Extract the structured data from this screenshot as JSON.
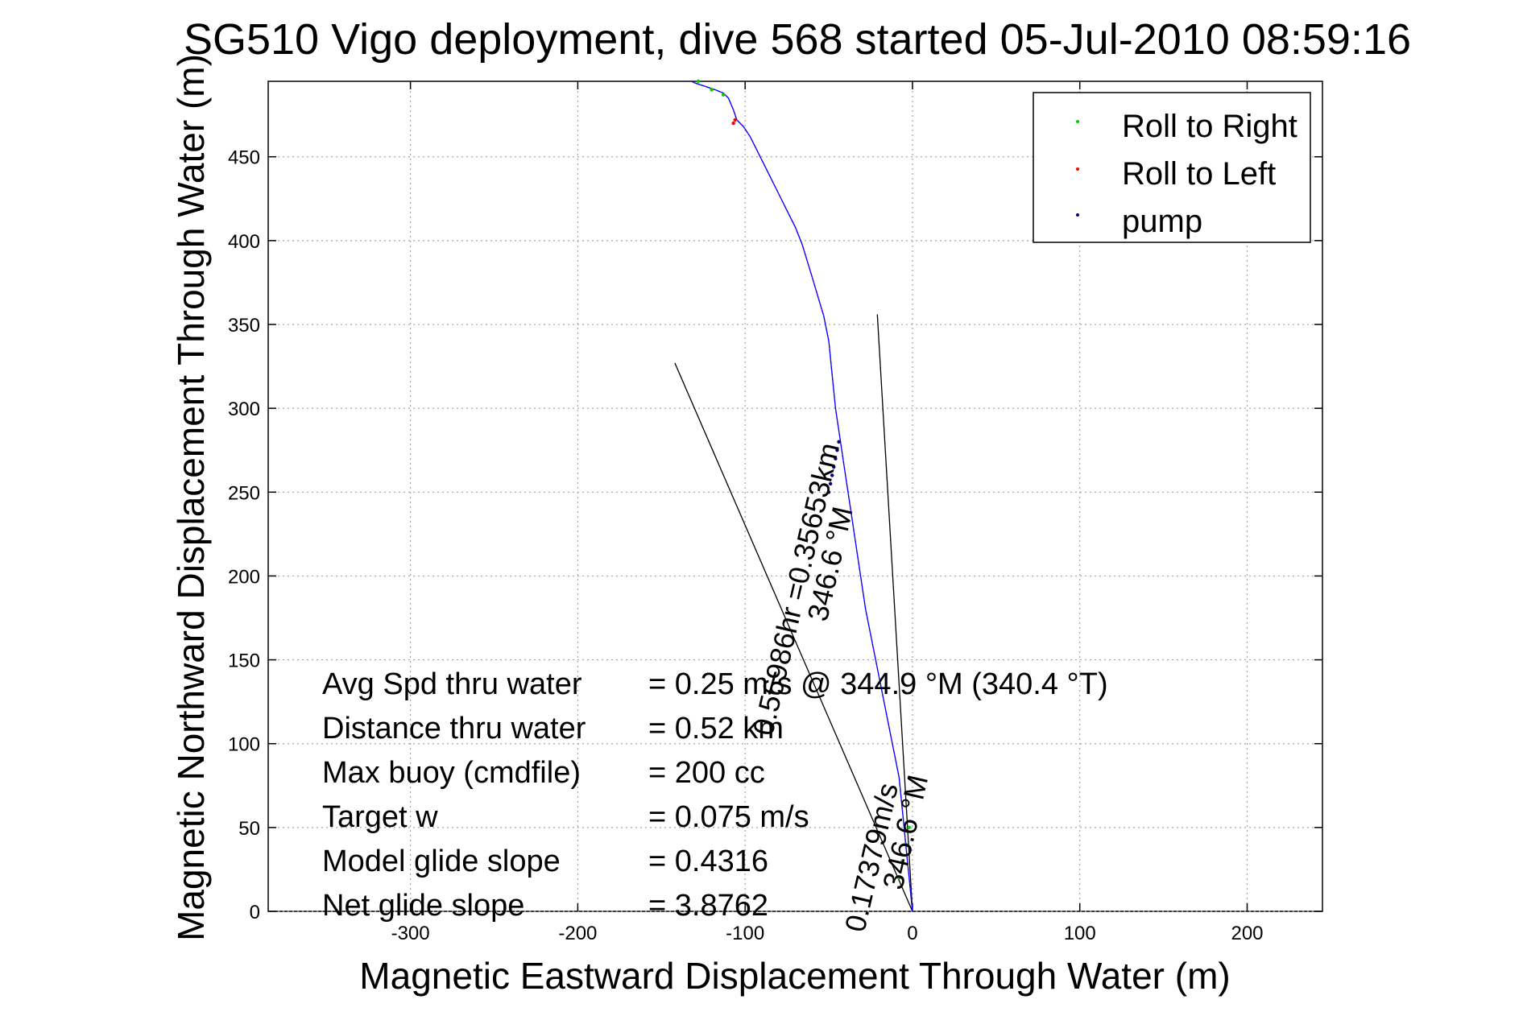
{
  "chart_data": {
    "type": "line",
    "title": "SG510 Vigo deployment, dive 568 started 05-Jul-2010 08:59:16",
    "xlabel": "Magnetic Eastward Displacement Through Water (m)",
    "ylabel": "Magnetic Northward Displacement Through Water (m)",
    "xlim": [
      -385,
      245
    ],
    "ylim": [
      0,
      495
    ],
    "xticks": [
      -300,
      -200,
      -100,
      0,
      100,
      200
    ],
    "yticks": [
      0,
      50,
      100,
      150,
      200,
      250,
      300,
      350,
      400,
      450
    ],
    "grid": true,
    "legend_position": "top-right",
    "legend": [
      {
        "label": "Roll to Right",
        "color": "#00cc00"
      },
      {
        "label": "Roll to Left",
        "color": "#ff0000"
      },
      {
        "label": "pump",
        "color": "#000080"
      }
    ],
    "track": {
      "color": "#0000ff",
      "x": [
        0,
        -2,
        -4,
        -6,
        -8,
        -12,
        -16,
        -20,
        -24,
        -28,
        -31,
        -34,
        -37,
        -40,
        -43,
        -46,
        -48,
        -50,
        -53,
        -56,
        -59,
        -62,
        -66,
        -70,
        -75,
        -80,
        -86,
        -92,
        -97,
        -101,
        -105,
        -107,
        -110,
        -113,
        -118,
        -124,
        -130,
        -132
      ],
      "y": [
        0,
        20,
        40,
        60,
        80,
        100,
        120,
        140,
        160,
        180,
        200,
        220,
        240,
        260,
        280,
        300,
        320,
        340,
        355,
        365,
        375,
        385,
        398,
        408,
        418,
        428,
        440,
        452,
        462,
        468,
        472,
        478,
        485,
        488,
        490,
        492,
        494,
        495
      ]
    },
    "heading_lines": [
      {
        "x": [
          0,
          -142
        ],
        "y": [
          0,
          327
        ],
        "color": "#000000"
      },
      {
        "x": [
          0,
          -21
        ],
        "y": [
          0,
          356
        ],
        "color": "#000000"
      }
    ],
    "heading_annotations": [
      {
        "text": "0.56986hr =0.35653km",
        "heading_label": "346.6 °M",
        "x": -60,
        "y": 190,
        "rotation": -77
      },
      {
        "text": "0.17379m/s",
        "heading_label": "346.6 °M",
        "x": -15,
        "y": 30,
        "rotation": -77
      }
    ],
    "stats": [
      {
        "label": "Avg Spd thru water",
        "value": "=  0.25 m/s @ 344.9 °M (340.4 °T)"
      },
      {
        "label": "Distance thru water",
        "value": "=  0.52 km"
      },
      {
        "label": "Max buoy (cmdfile)",
        "value": "= 200 cc"
      },
      {
        "label": "Target w",
        "value": "= 0.075 m/s"
      },
      {
        "label": "Model glide slope",
        "value": "= 0.4316"
      },
      {
        "label": "Net glide slope",
        "value": "= 3.8762"
      }
    ],
    "markers": {
      "roll_right": {
        "x": [
          -128,
          -120,
          -113,
          -8,
          -6,
          -4,
          -2
        ],
        "y": [
          495,
          490,
          487,
          20,
          30,
          40,
          50
        ]
      },
      "roll_left": {
        "x": [
          -107,
          -106
        ],
        "y": [
          470,
          472
        ]
      },
      "pump": {
        "x": [
          -50,
          -49,
          -48,
          -47,
          -46,
          -45,
          -44
        ],
        "y": [
          250,
          255,
          260,
          265,
          270,
          275,
          280
        ]
      }
    }
  }
}
